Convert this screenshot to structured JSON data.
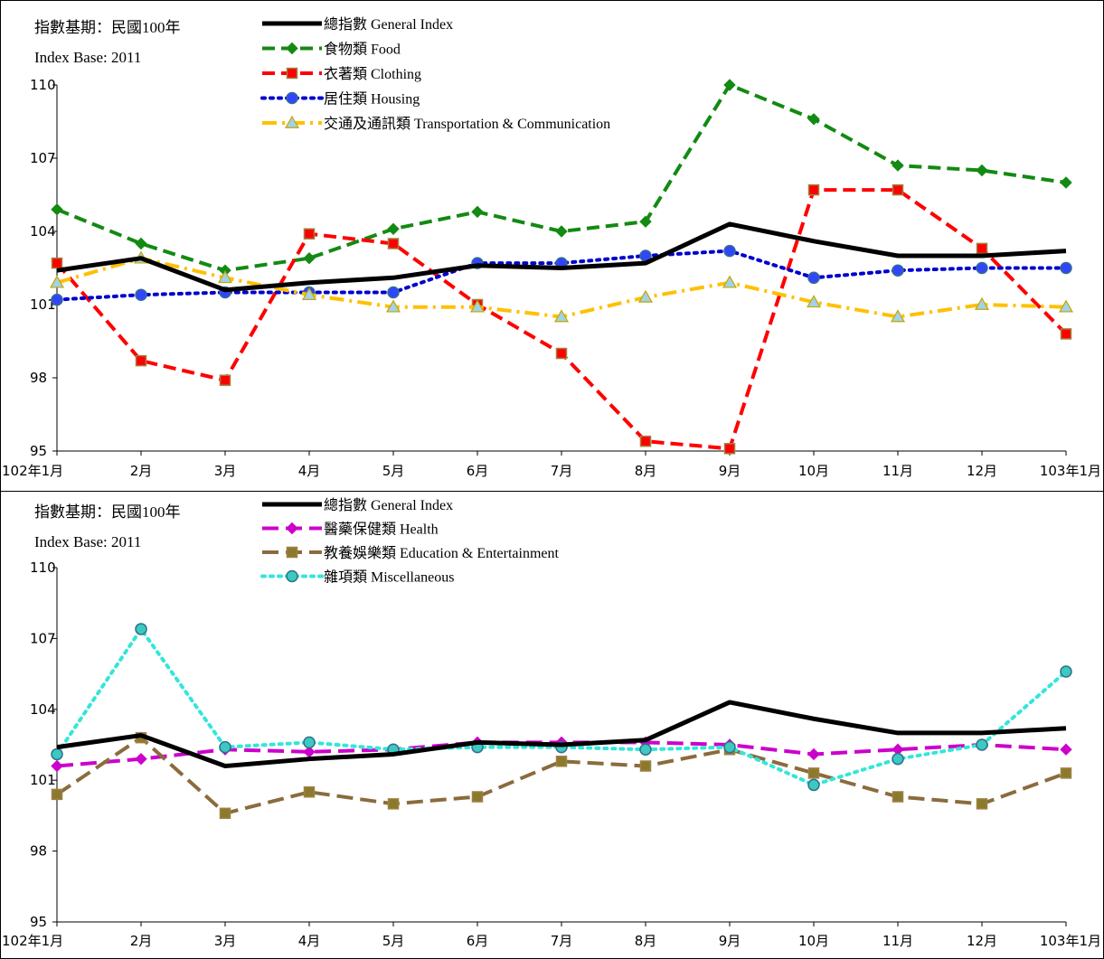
{
  "colors": {
    "general": "#000000",
    "food": "#138a13",
    "clothing": "#ff0000",
    "housing": "#0000cc",
    "transport": "#ffc000",
    "health": "#cc00cc",
    "education": "#8b6b3d",
    "misc": "#33e6d9"
  },
  "chart_data": [
    {
      "type": "line",
      "note_line1": "指數基期：民國100年",
      "note_line2": "Index Base: 2011",
      "x": [
        "102年1月",
        "2月",
        "3月",
        "4月",
        "5月",
        "6月",
        "7月",
        "8月",
        "9月",
        "10月",
        "11月",
        "12月",
        "103年1月"
      ],
      "ylim": [
        95,
        110
      ],
      "yticks": [
        95,
        98,
        101,
        104,
        107,
        110
      ],
      "grid": false,
      "legend_position": "top-center",
      "series": [
        {
          "key": "general",
          "name": "總指數 General Index",
          "marker": "none",
          "dash": "solid",
          "values": [
            102.4,
            102.9,
            101.6,
            101.9,
            102.1,
            102.6,
            102.5,
            102.7,
            104.3,
            103.6,
            103.0,
            103.0,
            103.2
          ]
        },
        {
          "key": "food",
          "name": "食物類 Food",
          "marker": "diamond",
          "dash": "dash",
          "values": [
            104.9,
            103.5,
            102.4,
            102.9,
            104.1,
            104.8,
            104.0,
            104.4,
            110.0,
            108.6,
            106.7,
            106.5,
            106.0
          ]
        },
        {
          "key": "clothing",
          "name": "衣著類 Clothing",
          "marker": "square",
          "dash": "dash",
          "values": [
            102.7,
            98.7,
            97.9,
            103.9,
            103.5,
            101.0,
            99.0,
            95.4,
            95.1,
            105.7,
            105.7,
            103.3,
            99.8
          ]
        },
        {
          "key": "housing",
          "name": "居住類 Housing",
          "marker": "circle",
          "dash": "dot",
          "values": [
            101.2,
            101.4,
            101.5,
            101.5,
            101.5,
            102.7,
            102.7,
            103.0,
            103.2,
            102.1,
            102.4,
            102.5,
            102.5
          ]
        },
        {
          "key": "transport",
          "name": "交通及通訊類 Transportation & Communication",
          "marker": "triangle",
          "dash": "dashdot",
          "values": [
            101.9,
            102.9,
            102.1,
            101.4,
            100.9,
            100.9,
            100.5,
            101.3,
            101.9,
            101.1,
            100.5,
            101.0,
            100.9
          ]
        }
      ]
    },
    {
      "type": "line",
      "note_line1": "指數基期：民國100年",
      "note_line2": "Index Base: 2011",
      "x": [
        "102年1月",
        "2月",
        "3月",
        "4月",
        "5月",
        "6月",
        "7月",
        "8月",
        "9月",
        "10月",
        "11月",
        "12月",
        "103年1月"
      ],
      "ylim": [
        95,
        110
      ],
      "yticks": [
        95,
        98,
        101,
        104,
        107,
        110
      ],
      "grid": false,
      "legend_position": "top-center",
      "series": [
        {
          "key": "general",
          "name": "總指數 General Index",
          "marker": "none",
          "dash": "solid",
          "values": [
            102.4,
            102.9,
            101.6,
            101.9,
            102.1,
            102.6,
            102.5,
            102.7,
            104.3,
            103.6,
            103.0,
            103.0,
            103.2
          ]
        },
        {
          "key": "health",
          "name": "醫藥保健類 Health",
          "marker": "diamond",
          "dash": "longdash",
          "values": [
            101.6,
            101.9,
            102.3,
            102.2,
            102.3,
            102.6,
            102.6,
            102.6,
            102.5,
            102.1,
            102.3,
            102.5,
            102.3
          ]
        },
        {
          "key": "education",
          "name": "教養娛樂類 Education & Entertainment",
          "marker": "square",
          "dash": "longdash",
          "values": [
            100.4,
            102.8,
            99.6,
            100.5,
            100.0,
            100.3,
            101.8,
            101.6,
            102.3,
            101.3,
            100.3,
            100.0,
            101.3
          ]
        },
        {
          "key": "misc",
          "name": "雜項類 Miscellaneous",
          "marker": "circle",
          "dash": "dot",
          "values": [
            102.1,
            107.4,
            102.4,
            102.6,
            102.3,
            102.4,
            102.4,
            102.3,
            102.4,
            100.8,
            101.9,
            102.5,
            105.6
          ]
        }
      ]
    }
  ]
}
